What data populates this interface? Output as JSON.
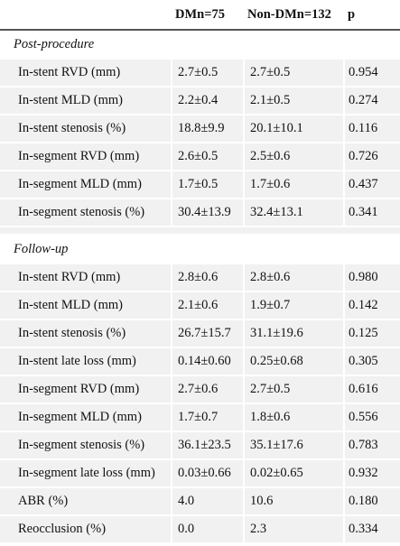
{
  "header": {
    "col0": "",
    "col1": "DMn=75",
    "col2": "Non-DMn=132",
    "col3": "p"
  },
  "sections": [
    {
      "title": "Post-procedure",
      "rows": [
        {
          "label": "In-stent RVD (mm)",
          "dm": "2.7±0.5",
          "nondm": "2.7±0.5",
          "p": "0.954"
        },
        {
          "label": "In-stent MLD (mm)",
          "dm": "2.2±0.4",
          "nondm": "2.1±0.5",
          "p": "0.274"
        },
        {
          "label": "In-stent stenosis (%)",
          "dm": "18.8±9.9",
          "nondm": "20.1±10.1",
          "p": "0.116"
        },
        {
          "label": "In-segment RVD (mm)",
          "dm": "2.6±0.5",
          "nondm": "2.5±0.6",
          "p": "0.726"
        },
        {
          "label": "In-segment MLD (mm)",
          "dm": "1.7±0.5",
          "nondm": "1.7±0.6",
          "p": "0.437"
        },
        {
          "label": "In-segment stenosis (%)",
          "dm": "30.4±13.9",
          "nondm": "32.4±13.1",
          "p": "0.341"
        }
      ]
    },
    {
      "title": "Follow-up",
      "rows": [
        {
          "label": "In-stent RVD (mm)",
          "dm": "2.8±0.6",
          "nondm": "2.8±0.6",
          "p": "0.980"
        },
        {
          "label": "In-stent MLD (mm)",
          "dm": "2.1±0.6",
          "nondm": "1.9±0.7",
          "p": "0.142"
        },
        {
          "label": "In-stent stenosis (%)",
          "dm": "26.7±15.7",
          "nondm": "31.1±19.6",
          "p": "0.125"
        },
        {
          "label": "In-stent late loss (mm)",
          "dm": "0.14±0.60",
          "nondm": "0.25±0.68",
          "p": "0.305"
        },
        {
          "label": "In-segment RVD (mm)",
          "dm": "2.7±0.6",
          "nondm": "2.7±0.5",
          "p": "0.616"
        },
        {
          "label": "In-segment MLD (mm)",
          "dm": "1.7±0.7",
          "nondm": "1.8±0.6",
          "p": "0.556"
        },
        {
          "label": "In-segment stenosis (%)",
          "dm": "36.1±23.5",
          "nondm": "35.1±17.6",
          "p": "0.783"
        },
        {
          "label": "In-segment late loss (mm)",
          "dm": "0.03±0.66",
          "nondm": "0.02±0.65",
          "p": "0.932"
        },
        {
          "label": "ABR (%)",
          "dm": "4.0",
          "nondm": "10.6",
          "p": "0.180"
        },
        {
          "label": "Reocclusion (%)",
          "dm": "0.0",
          "nondm": "2.3",
          "p": "0.334"
        }
      ]
    }
  ]
}
